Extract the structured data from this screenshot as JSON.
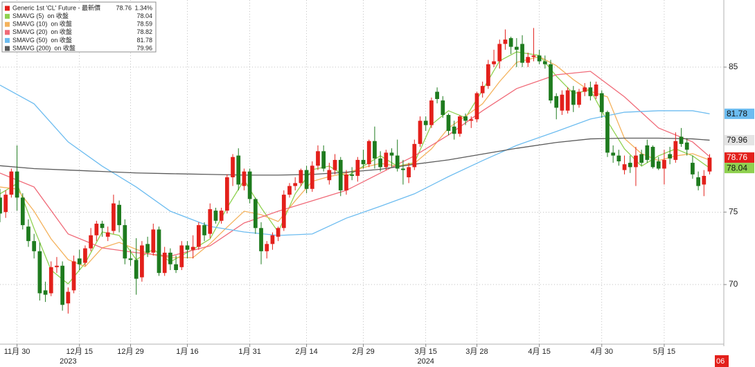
{
  "chart_data": {
    "type": "candlestick",
    "name": "Generic 1st 'CL' Future - 最新價",
    "change": "1.34%",
    "up_color": "#e3201b",
    "down_color": "#1e7b1e",
    "x": [
      0,
      1,
      2,
      3,
      4,
      5,
      6,
      7,
      8,
      9,
      10,
      11,
      12,
      13,
      14,
      15,
      16,
      17,
      18,
      19,
      20,
      21,
      22,
      23,
      24,
      25,
      26,
      27,
      28,
      29,
      30,
      31,
      32,
      33,
      34,
      35,
      36,
      37,
      38,
      39,
      40,
      41,
      42,
      43,
      44,
      45,
      46,
      47,
      48,
      49,
      50,
      51,
      52,
      53,
      54,
      55,
      56,
      57,
      58,
      59,
      60,
      61,
      62,
      63,
      64,
      65,
      66,
      67,
      68,
      69,
      70,
      71,
      72,
      73,
      74,
      75,
      76,
      77,
      78,
      79,
      80,
      81,
      82,
      83,
      84,
      85,
      86,
      87,
      88,
      89,
      90,
      91,
      92,
      93,
      94,
      95,
      96,
      97,
      98,
      99,
      100,
      101,
      102,
      103,
      104,
      105,
      106,
      107,
      108,
      109,
      110,
      111,
      112,
      113,
      114,
      115,
      116,
      117,
      118,
      119,
      120,
      121,
      122,
      123,
      124,
      125
    ],
    "open": [
      76.0,
      75.0,
      76.2,
      77.8,
      76.0,
      74.0,
      73.0,
      72.3,
      69.6,
      69.4,
      71.2,
      71.3,
      68.7,
      69.6,
      71.8,
      71.5,
      72.5,
      73.4,
      74.2,
      73.3,
      73.7,
      75.5,
      74.1,
      71.8,
      71.7,
      70.5,
      72.8,
      72.2,
      73.8,
      70.8,
      72.2,
      71.4,
      71.2,
      72.7,
      72.4,
      72.6,
      74.1,
      73.5,
      75.1,
      74.4,
      75.1,
      77.4,
      78.9,
      76.8,
      77.8,
      75.9,
      73.9,
      72.3,
      72.8,
      73.3,
      73.9,
      76.2,
      76.8,
      77.0,
      77.9,
      76.6,
      78.2,
      79.2,
      77.2,
      77.9,
      78.6,
      76.5,
      77.6,
      77.5,
      78.6,
      78.3,
      79.9,
      78.7,
      78.1,
      79.1,
      78.9,
      78.0,
      77.4,
      78.1,
      79.7,
      81.3,
      81.0,
      83.3,
      82.7,
      81.7,
      80.9,
      80.4,
      81.6,
      81.3,
      81.4,
      83.2,
      83.7,
      85.2,
      85.4,
      86.6,
      87.0,
      86.4,
      86.6,
      85.3,
      85.7,
      85.8,
      85.4,
      85.2,
      83.0,
      82.0,
      82.0,
      83.4,
      82.4,
      83.3,
      83.6,
      83.0,
      83.2,
      81.9,
      79.1,
      78.9,
      77.9,
      78.4,
      78.1,
      79.0,
      79.6,
      79.5,
      78.5,
      78.0,
      79.0,
      78.6,
      80.2,
      79.8,
      78.4,
      77.4,
      76.9,
      77.8
    ],
    "high": [
      76.6,
      76.5,
      78.0,
      79.6,
      76.3,
      74.5,
      73.5,
      72.9,
      70.2,
      71.6,
      71.9,
      71.6,
      69.8,
      72.0,
      72.4,
      72.7,
      73.9,
      74.4,
      74.4,
      74.0,
      76.2,
      75.8,
      74.5,
      72.4,
      73.2,
      73.0,
      73.3,
      74.2,
      74.0,
      72.6,
      72.5,
      72.0,
      73.0,
      73.0,
      73.4,
      74.3,
      74.3,
      75.6,
      75.3,
      75.3,
      77.6,
      79.0,
      79.4,
      78.0,
      78.0,
      76.0,
      74.3,
      73.0,
      73.6,
      74.0,
      76.5,
      77.0,
      77.4,
      78.0,
      78.2,
      78.5,
      79.6,
      79.6,
      78.4,
      79.0,
      78.8,
      77.9,
      78.1,
      78.8,
      79.3,
      80.0,
      80.9,
      79.2,
      79.3,
      79.4,
      80.0,
      78.6,
      78.4,
      80.0,
      81.6,
      81.6,
      82.9,
      83.6,
      83.0,
      81.8,
      81.3,
      81.7,
      81.8,
      81.6,
      83.3,
      84.0,
      85.5,
      86.2,
      86.9,
      87.6,
      87.1,
      87.0,
      87.2,
      86.0,
      87.7,
      86.2,
      85.8,
      85.5,
      83.2,
      83.4,
      83.6,
      83.7,
      83.5,
      83.9,
      84.0,
      84.0,
      83.4,
      82.0,
      79.6,
      79.3,
      78.9,
      78.9,
      79.5,
      79.3,
      80.0,
      79.6,
      78.8,
      79.3,
      79.5,
      80.5,
      80.8,
      80.1,
      78.9,
      77.8,
      77.9,
      79.0
    ],
    "low": [
      74.3,
      74.6,
      76.0,
      75.1,
      73.8,
      72.6,
      71.8,
      68.9,
      68.8,
      69.2,
      70.8,
      68.2,
      68.0,
      69.4,
      71.0,
      71.3,
      72.3,
      73.0,
      73.3,
      73.0,
      73.5,
      73.6,
      71.4,
      71.3,
      69.3,
      70.2,
      71.9,
      72.0,
      70.6,
      70.6,
      71.0,
      70.8,
      71.0,
      71.8,
      71.8,
      72.4,
      73.0,
      73.2,
      74.2,
      74.2,
      74.9,
      76.8,
      76.5,
      76.5,
      75.6,
      73.5,
      71.4,
      71.8,
      72.4,
      73.0,
      73.7,
      76.0,
      76.5,
      76.8,
      76.3,
      76.4,
      77.9,
      77.8,
      76.9,
      77.6,
      76.1,
      76.2,
      77.2,
      77.1,
      78.0,
      78.1,
      78.0,
      77.8,
      77.9,
      78.1,
      77.8,
      76.9,
      77.0,
      77.9,
      79.5,
      80.6,
      80.8,
      82.5,
      81.5,
      80.3,
      80.0,
      80.2,
      81.0,
      80.8,
      81.2,
      82.9,
      83.5,
      85.0,
      84.9,
      86.2,
      85.9,
      85.0,
      85.0,
      85.0,
      85.4,
      85.2,
      84.9,
      82.5,
      81.4,
      81.7,
      81.8,
      81.9,
      82.2,
      83.0,
      82.7,
      82.8,
      81.5,
      78.8,
      78.4,
      78.2,
      77.6,
      77.7,
      76.8,
      78.2,
      78.4,
      78.0,
      77.9,
      76.9,
      78.3,
      78.4,
      79.5,
      78.9,
      77.3,
      76.5,
      76.1,
      77.6
    ],
    "close": [
      74.9,
      76.2,
      77.8,
      76.0,
      74.1,
      73.0,
      72.3,
      69.4,
      69.3,
      71.2,
      71.3,
      68.6,
      69.5,
      71.6,
      71.4,
      72.5,
      73.4,
      74.2,
      73.9,
      73.6,
      75.6,
      74.1,
      71.8,
      71.7,
      70.4,
      72.7,
      72.2,
      73.8,
      70.8,
      72.2,
      71.4,
      71.0,
      72.7,
      72.4,
      72.6,
      74.1,
      73.4,
      75.2,
      74.4,
      75.1,
      77.4,
      78.8,
      76.9,
      77.8,
      75.9,
      73.9,
      72.3,
      72.8,
      73.4,
      73.9,
      76.2,
      76.8,
      77.0,
      77.9,
      76.6,
      78.2,
      79.2,
      78.0,
      77.9,
      78.6,
      76.5,
      77.6,
      77.5,
      78.6,
      78.3,
      79.9,
      78.7,
      78.1,
      79.1,
      78.9,
      78.0,
      77.9,
      78.1,
      79.7,
      81.3,
      81.0,
      82.7,
      82.8,
      81.7,
      80.6,
      80.4,
      81.6,
      81.3,
      81.4,
      83.2,
      83.7,
      85.2,
      85.4,
      86.6,
      86.9,
      86.4,
      86.2,
      85.3,
      85.7,
      85.8,
      85.4,
      85.2,
      82.7,
      82.2,
      83.1,
      83.4,
      82.4,
      83.3,
      83.6,
      83.0,
      83.8,
      81.9,
      79.1,
      78.9,
      78.5,
      78.3,
      78.1,
      78.9,
      78.4,
      78.6,
      78.1,
      78.0,
      78.6,
      78.7,
      79.9,
      79.7,
      79.3,
      77.6,
      76.8,
      77.5,
      78.76
    ],
    "ma": [
      {
        "name": "SMAVG (5)  on 收盤",
        "color": "#8fd14f",
        "axis_label": true,
        "x": [
          0,
          3,
          6,
          9,
          12,
          15,
          18,
          21,
          24,
          27,
          30,
          34,
          37,
          40,
          43,
          46,
          49,
          52,
          55,
          58,
          61,
          64,
          67,
          70,
          73,
          76,
          79,
          82,
          85,
          88,
          91,
          95,
          98,
          101,
          104,
          107,
          110,
          113,
          116,
          119,
          122,
          125
        ],
        "values": [
          76.26,
          76.97,
          73.87,
          71.0,
          70.05,
          71.48,
          73.63,
          73.39,
          71.72,
          72.43,
          71.57,
          72.43,
          73.15,
          75.3,
          77.21,
          75.3,
          73.63,
          76.26,
          77.93,
          78.17,
          77.45,
          78.17,
          78.88,
          78.17,
          78.41,
          81.03,
          81.99,
          81.51,
          83.42,
          85.43,
          86.05,
          85.81,
          84.38,
          83.18,
          83.42,
          81.27,
          79.36,
          78.17,
          78.88,
          79.36,
          78.88,
          78.04
        ]
      },
      {
        "name": "SMAVG (10)  on 收盤",
        "color": "#f4b25c",
        "axis_label": false,
        "x": [
          0,
          3,
          6,
          9,
          12,
          15,
          18,
          21,
          24,
          27,
          30,
          34,
          37,
          40,
          43,
          46,
          49,
          52,
          55,
          58,
          61,
          64,
          67,
          70,
          73,
          76,
          79,
          82,
          85,
          88,
          91,
          95,
          98,
          101,
          104,
          107,
          110,
          113,
          116,
          119,
          122,
          125
        ],
        "values": [
          76.73,
          76.59,
          75.06,
          73.15,
          71.72,
          71.24,
          72.53,
          72.91,
          72.43,
          72.05,
          71.86,
          71.86,
          72.82,
          73.96,
          75.06,
          74.82,
          74.35,
          75.78,
          77.12,
          77.45,
          77.69,
          78.07,
          78.36,
          78.17,
          78.36,
          79.36,
          80.8,
          81.61,
          82.47,
          84.0,
          85.33,
          85.72,
          85.1,
          84.14,
          83.33,
          82.95,
          80.08,
          79.03,
          78.55,
          78.88,
          79.03,
          78.59
        ]
      },
      {
        "name": "SMAVG (20)  on 收盤",
        "color": "#f06a78",
        "axis_label": false,
        "x": [
          0,
          6,
          12,
          18,
          24,
          30,
          37,
          43,
          49,
          55,
          61,
          67,
          73,
          79,
          85,
          91,
          98,
          104,
          110,
          116,
          122,
          125
        ],
        "values": [
          77.69,
          76.73,
          73.49,
          72.53,
          72.2,
          71.96,
          72.67,
          74.25,
          75.06,
          75.78,
          76.5,
          77.69,
          78.88,
          80.32,
          81.99,
          83.52,
          84.47,
          84.71,
          82.95,
          80.8,
          79.84,
          78.82
        ]
      },
      {
        "name": "SMAVG (50)  on 收盤",
        "color": "#6cbcf0",
        "axis_label": true,
        "x": [
          0,
          6,
          12,
          18,
          24,
          30,
          37,
          43,
          49,
          55,
          61,
          67,
          73,
          79,
          85,
          91,
          98,
          104,
          110,
          116,
          122,
          125
        ],
        "values": [
          83.76,
          82.47,
          79.84,
          78.17,
          76.73,
          75.06,
          74.01,
          73.63,
          73.39,
          73.49,
          74.58,
          75.4,
          76.26,
          77.45,
          78.55,
          79.6,
          80.56,
          81.42,
          81.89,
          81.99,
          81.99,
          81.78
        ]
      },
      {
        "name": "SMAVG (200)  on 收盤",
        "color": "#5a5a5a",
        "axis_label": true,
        "x": [
          0,
          6,
          12,
          18,
          24,
          30,
          37,
          43,
          49,
          55,
          61,
          67,
          73,
          79,
          85,
          91,
          98,
          104,
          110,
          116,
          122,
          125
        ],
        "values": [
          78.2,
          78.0,
          77.9,
          77.8,
          77.7,
          77.65,
          77.6,
          77.55,
          77.55,
          77.6,
          77.75,
          77.95,
          78.3,
          78.6,
          79.0,
          79.4,
          79.8,
          80.05,
          80.1,
          80.1,
          80.05,
          79.96
        ]
      }
    ],
    "xlim": [
      0,
      127.5
    ],
    "ylim": [
      65.89,
      89.63
    ],
    "xticks": [
      {
        "value": 3,
        "label": "11月 30"
      },
      {
        "value": 14,
        "label": "12月 15"
      },
      {
        "value": 23,
        "label": "12月 29"
      },
      {
        "value": 33,
        "label": "1月 16"
      },
      {
        "value": 44,
        "label": "1月 31"
      },
      {
        "value": 54,
        "label": "2月 14"
      },
      {
        "value": 64,
        "label": "2月 29"
      },
      {
        "value": 75,
        "label": "3月 15"
      },
      {
        "value": 84,
        "label": "3月 28"
      },
      {
        "value": 95,
        "label": "4月 15"
      },
      {
        "value": 106,
        "label": "4月 30"
      },
      {
        "value": 117,
        "label": "5月 15"
      }
    ],
    "year_ticks": [
      {
        "value": 12,
        "label": "2023"
      },
      {
        "value": 75,
        "label": "2024"
      }
    ],
    "yticks": [
      70,
      75,
      85
    ],
    "cursor_label": "06",
    "grid": true
  }
}
